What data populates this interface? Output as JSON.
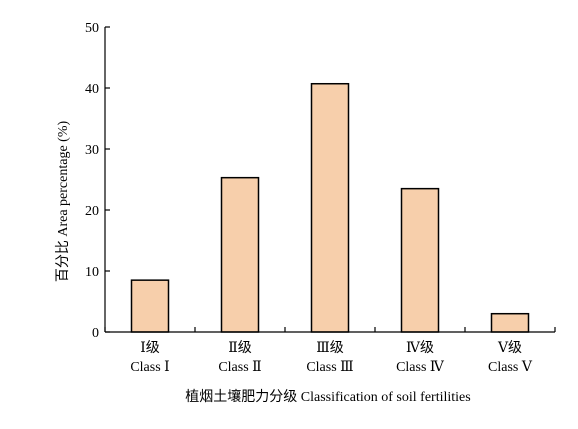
{
  "chart_data": {
    "type": "bar",
    "categories": [
      "Ⅰ级",
      "Ⅱ级",
      "Ⅲ级",
      "Ⅳ级",
      "Ⅴ级"
    ],
    "category_labels_en": [
      "Class Ⅰ",
      "Class Ⅱ",
      "Class Ⅲ",
      "Class Ⅳ",
      "Class Ⅴ"
    ],
    "values": [
      8.5,
      25.3,
      40.7,
      23.5,
      3.0
    ],
    "xlabel": "植烟土壤肥力分级 Classification of soil fertilities",
    "ylabel": "百分比 Area percentage (%)",
    "ylim": [
      0,
      50
    ],
    "yticks": [
      "0",
      "10",
      "20",
      "30",
      "40",
      "50"
    ],
    "grid": false,
    "colors": {
      "bar_fill": "#f7cfab",
      "bar_stroke": "#000000",
      "axis": "#000000"
    }
  }
}
